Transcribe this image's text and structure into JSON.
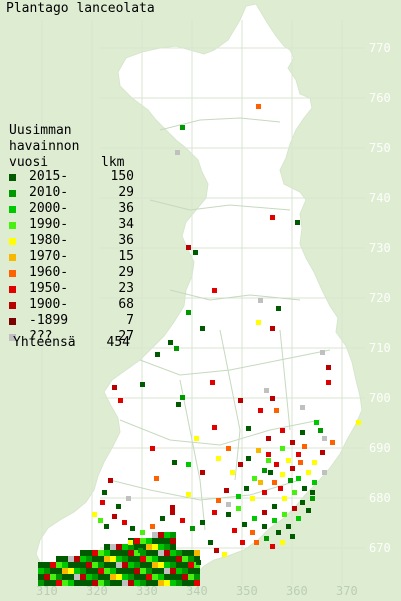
{
  "title": "Plantago lanceolata",
  "legend": {
    "heading_lines": [
      "Uusimman",
      "havainnon",
      "vuosi"
    ],
    "count_heading": "lkm",
    "items": [
      {
        "label": "2015-",
        "count": "150",
        "color": "#005a00"
      },
      {
        "label": "2010-",
        "count": "29",
        "color": "#009800"
      },
      {
        "label": "2000-",
        "count": "36",
        "color": "#00c800"
      },
      {
        "label": "1990-",
        "count": "34",
        "color": "#48f010"
      },
      {
        "label": "1980-",
        "count": "36",
        "color": "#ffff00"
      },
      {
        "label": "1970-",
        "count": "15",
        "color": "#f8b800"
      },
      {
        "label": "1960-",
        "count": "29",
        "color": "#ff6000"
      },
      {
        "label": "1950-",
        "count": "23",
        "color": "#e00000"
      },
      {
        "label": "1900-",
        "count": "68",
        "color": "#b80000"
      },
      {
        "label": "-1899",
        "count": "7",
        "color": "#7a0000"
      },
      {
        "label": "???",
        "count": "27",
        "color": "#c0c0c0"
      }
    ],
    "total_label": "Yhteensä",
    "total_count": "454"
  },
  "axes": {
    "y_labels": [
      "770",
      "760",
      "750",
      "740",
      "730",
      "720",
      "710",
      "700",
      "690",
      "680",
      "670"
    ],
    "x_labels": [
      "310",
      "320",
      "330",
      "340",
      "350",
      "360",
      "370"
    ]
  },
  "colors": {
    "background": "#deecd2",
    "land": "#ffffff",
    "grid": "#c8dcc0",
    "border": "#9bb896",
    "axis_text_y": "#ffffff",
    "axis_text_x": "#b9cdb4"
  }
}
